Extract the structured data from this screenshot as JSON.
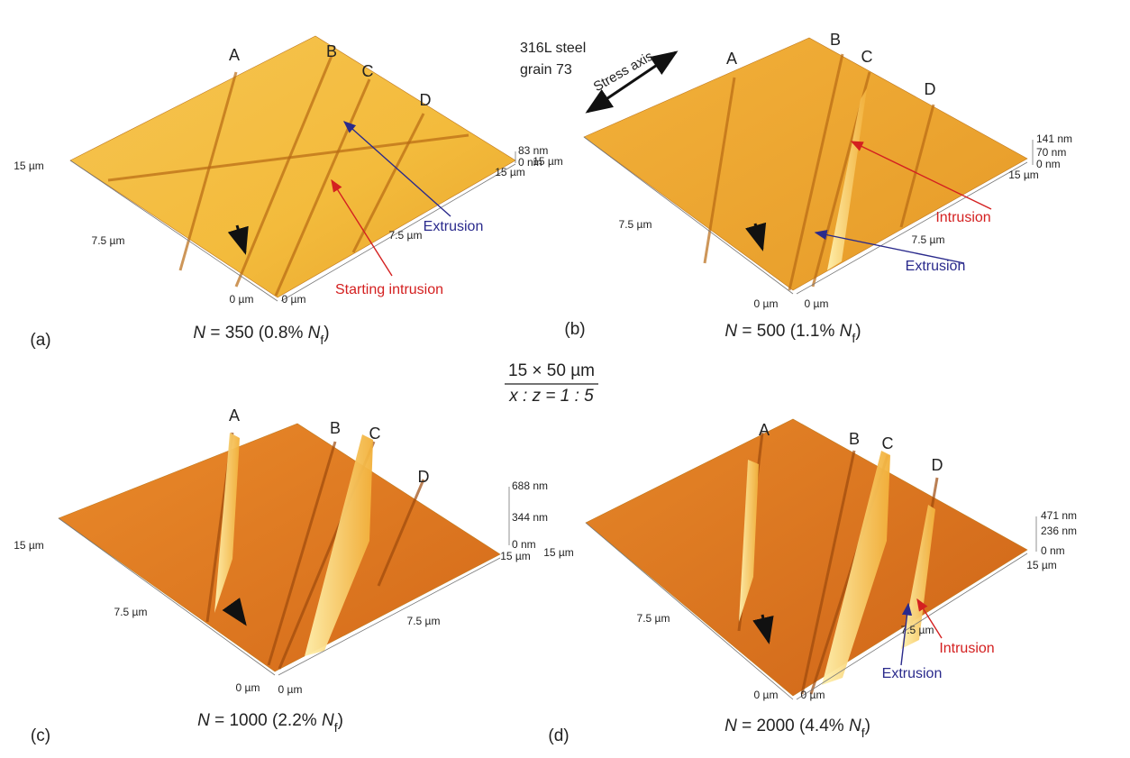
{
  "center": {
    "material": "316L steel",
    "grain": "grain 73",
    "stress_axis": "Stress axis",
    "scale_top": "15 × 50 µm",
    "scale_bottom": "x : z = 1 : 5"
  },
  "panels": [
    {
      "label": "(a)",
      "slips": [
        "A",
        "B",
        "C",
        "D"
      ],
      "z_labels": [
        "83 nm",
        "0 nm"
      ],
      "axis_labels": [
        "15 µm",
        "7.5 µm",
        "0 µm",
        "0 µm",
        "7.5 µm",
        "15 µm"
      ],
      "annotations": [
        {
          "text": "Extrusion",
          "color": "#2a2a8c"
        },
        {
          "text": "Starting intrusion",
          "color": "#d42020"
        }
      ],
      "caption": [
        "N",
        " = 350 (0.8% ",
        "N",
        "f",
        ")"
      ]
    },
    {
      "label": "(b)",
      "slips": [
        "A",
        "B",
        "C",
        "D"
      ],
      "z_labels": [
        "141 nm",
        "70 nm",
        "0 nm"
      ],
      "axis_labels": [
        "15 µm",
        "7.5 µm",
        "0 µm",
        "0 µm",
        "7.5 µm",
        "15 µm"
      ],
      "annotations": [
        {
          "text": "Intrusion",
          "color": "#d42020"
        },
        {
          "text": "Extrusion",
          "color": "#2a2a8c"
        }
      ],
      "caption": [
        "N",
        " = 500 (1.1% ",
        "N",
        "f",
        ")"
      ]
    },
    {
      "label": "(c)",
      "slips": [
        "A",
        "B",
        "C",
        "D"
      ],
      "z_labels": [
        "688 nm",
        "344 nm",
        "0 nm"
      ],
      "axis_labels": [
        "15 µm",
        "7.5 µm",
        "0 µm",
        "0 µm",
        "7.5 µm",
        "15 µm"
      ],
      "annotations": [],
      "caption": [
        "N",
        " = 1000 (2.2% ",
        "N",
        "f",
        ")"
      ]
    },
    {
      "label": "(d)",
      "slips": [
        "A",
        "B",
        "C",
        "D"
      ],
      "z_labels": [
        "471 nm",
        "236 nm",
        "0 nm"
      ],
      "axis_labels": [
        "15 µm",
        "7.5 µm",
        "0 µm",
        "0 µm",
        "7.5 µm",
        "15 µm"
      ],
      "annotations": [
        {
          "text": "Intrusion",
          "color": "#d42020"
        },
        {
          "text": "Extrusion",
          "color": "#2a2a8c"
        }
      ],
      "caption": [
        "N",
        " = 2000 (4.4% ",
        "N",
        "f",
        ")"
      ]
    }
  ]
}
